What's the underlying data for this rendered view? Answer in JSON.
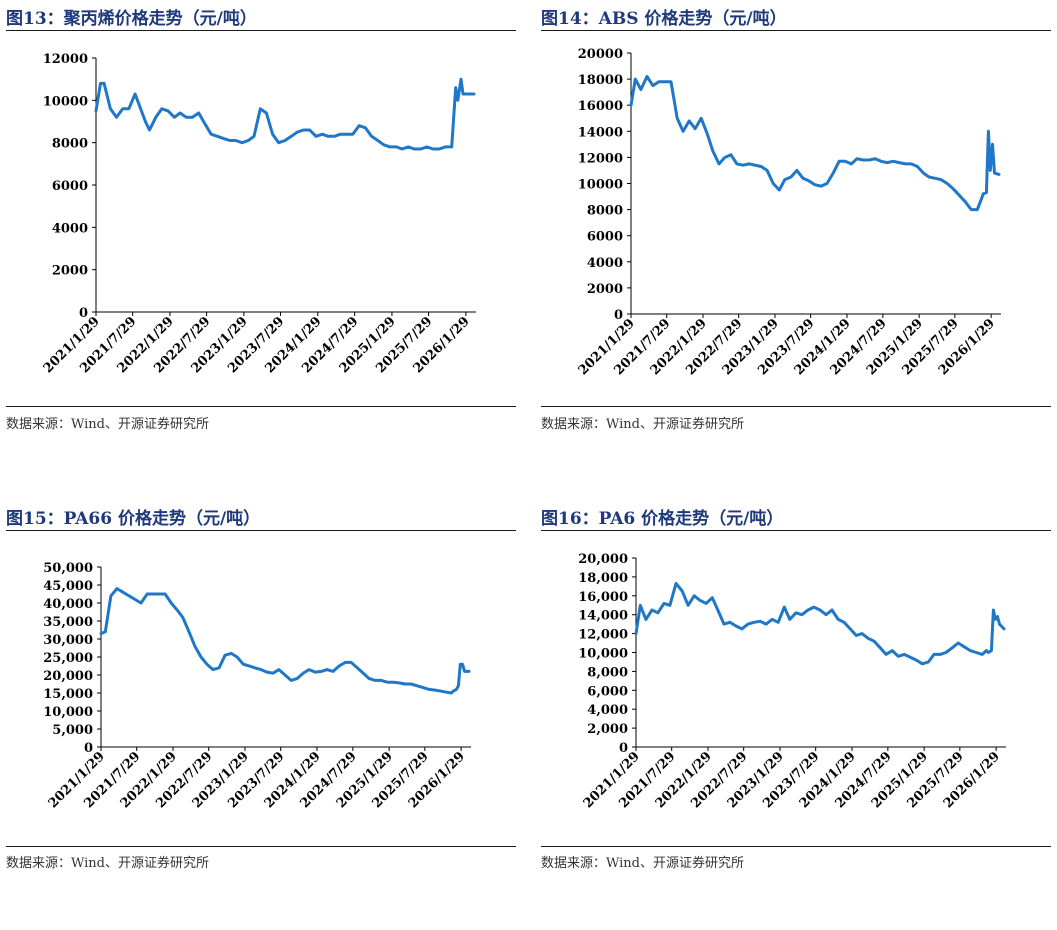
{
  "panels": [
    {
      "title": "图13：聚丙烯价格走势（元/吨）",
      "source": "数据来源：Wind、开源证券研究所"
    },
    {
      "title": "图14：ABS 价格走势（元/吨）",
      "source": "数据来源：Wind、开源证券研究所"
    },
    {
      "title": "图15：PA66 价格走势（元/吨）",
      "source": "数据来源：Wind、开源证券研究所"
    },
    {
      "title": "图16：PA6 价格走势（元/吨）",
      "source": "数据来源：Wind、开源证券研究所"
    }
  ],
  "chart_data": [
    {
      "type": "line",
      "title": "图13：聚丙烯价格走势（元/吨）",
      "color": "#1f77c8",
      "ylim": [
        0,
        12000
      ],
      "yticks": [
        0,
        2000,
        4000,
        6000,
        8000,
        10000,
        12000
      ],
      "ytick_labels": [
        "0",
        "2000",
        "4000",
        "6000",
        "8000",
        "10000",
        "12000"
      ],
      "xtick_labels": [
        "2021/1/29",
        "2021/7/29",
        "2022/1/29",
        "2022/7/29",
        "2023/1/29",
        "2023/7/29",
        "2024/1/29",
        "2024/7/29",
        "2025/1/29",
        "2025/7/29",
        "2026/1/29"
      ],
      "xlim": [
        "2021/1/29",
        "2026/3/20"
      ],
      "series": [
        {
          "x": [
            "2021/1/29",
            "2021/2/20",
            "2021/3/10",
            "2021/4/10",
            "2021/5/10",
            "2021/6/10",
            "2021/7/10",
            "2021/8/10",
            "2021/9/10",
            "2021/9/30",
            "2021/10/20",
            "2021/11/20",
            "2021/12/20",
            "2022/1/20",
            "2022/2/20",
            "2022/3/20",
            "2022/4/20",
            "2022/5/20",
            "2022/6/20",
            "2022/7/20",
            "2022/8/20",
            "2022/9/20",
            "2022/10/20",
            "2022/11/20",
            "2022/12/20",
            "2023/1/20",
            "2023/2/20",
            "2023/3/20",
            "2023/4/20",
            "2023/5/20",
            "2023/6/20",
            "2023/7/20",
            "2023/8/20",
            "2023/9/20",
            "2023/10/20",
            "2023/11/20",
            "2023/12/20",
            "2024/1/20",
            "2024/2/20",
            "2024/3/20",
            "2024/4/20",
            "2024/5/20",
            "2024/6/20",
            "2024/7/20",
            "2024/8/20",
            "2024/9/20",
            "2024/10/20",
            "2024/11/20",
            "2024/12/20",
            "2025/1/20",
            "2025/2/20",
            "2025/3/20",
            "2025/4/20",
            "2025/5/20",
            "2025/6/20",
            "2025/7/20",
            "2025/8/20",
            "2025/9/20",
            "2025/10/20",
            "2025/11/20",
            "2025/12/10",
            "2025/12/20",
            "2026/1/5",
            "2026/1/15",
            "2026/1/25",
            "2026/2/5",
            "2026/2/15",
            "2026/2/25",
            "2026/3/10"
          ],
          "y": [
            9500,
            10800,
            10800,
            9600,
            9200,
            9600,
            9600,
            10300,
            9500,
            9000,
            8600,
            9200,
            9600,
            9500,
            9200,
            9400,
            9200,
            9200,
            9400,
            8900,
            8400,
            8300,
            8200,
            8100,
            8100,
            8000,
            8100,
            8300,
            9600,
            9400,
            8400,
            8000,
            8100,
            8300,
            8500,
            8600,
            8600,
            8300,
            8400,
            8300,
            8300,
            8400,
            8400,
            8400,
            8800,
            8700,
            8300,
            8100,
            7900,
            7800,
            7800,
            7700,
            7800,
            7700,
            7700,
            7800,
            7700,
            7700,
            7800,
            7800,
            10600,
            10000,
            11000,
            10300,
            10300,
            10300,
            10300,
            10300,
            10300
          ]
        }
      ]
    },
    {
      "type": "line",
      "title": "图14：ABS 价格走势（元/吨）",
      "color": "#1f77c8",
      "ylim": [
        0,
        20000
      ],
      "yticks": [
        0,
        2000,
        4000,
        6000,
        8000,
        10000,
        12000,
        14000,
        16000,
        18000,
        20000
      ],
      "ytick_labels": [
        "0",
        "2000",
        "4000",
        "6000",
        "8000",
        "10000",
        "12000",
        "14000",
        "16000",
        "18000",
        "20000"
      ],
      "xtick_labels": [
        "2021/1/29",
        "2021/7/29",
        "2022/1/29",
        "2022/7/29",
        "2023/1/29",
        "2023/7/29",
        "2024/1/29",
        "2024/7/29",
        "2025/1/29",
        "2025/7/29",
        "2026/1/29"
      ],
      "xlim": [
        "2021/1/29",
        "2026/3/20"
      ],
      "series": [
        {
          "x": [
            "2021/1/29",
            "2021/2/20",
            "2021/3/20",
            "2021/4/20",
            "2021/5/20",
            "2021/6/20",
            "2021/7/20",
            "2021/8/20",
            "2021/9/20",
            "2021/10/20",
            "2021/11/20",
            "2021/12/20",
            "2022/1/20",
            "2022/2/20",
            "2022/3/20",
            "2022/4/20",
            "2022/5/20",
            "2022/6/20",
            "2022/7/20",
            "2022/8/20",
            "2022/9/20",
            "2022/10/20",
            "2022/11/20",
            "2022/12/20",
            "2023/1/20",
            "2023/2/20",
            "2023/3/20",
            "2023/4/20",
            "2023/5/20",
            "2023/6/20",
            "2023/7/20",
            "2023/8/20",
            "2023/9/20",
            "2023/10/20",
            "2023/11/20",
            "2023/12/20",
            "2024/1/20",
            "2024/2/20",
            "2024/3/20",
            "2024/4/20",
            "2024/5/20",
            "2024/6/20",
            "2024/7/20",
            "2024/8/20",
            "2024/9/20",
            "2024/10/20",
            "2024/11/20",
            "2024/12/20",
            "2025/1/20",
            "2025/2/20",
            "2025/3/20",
            "2025/4/20",
            "2025/5/20",
            "2025/6/20",
            "2025/7/20",
            "2025/8/20",
            "2025/9/20",
            "2025/10/20",
            "2025/11/20",
            "2025/12/10",
            "2025/12/20",
            "2026/1/5",
            "2026/1/15",
            "2026/1/25",
            "2026/2/5",
            "2026/2/15",
            "2026/3/10"
          ],
          "y": [
            16000,
            18000,
            17200,
            18200,
            17500,
            17800,
            17800,
            17800,
            15000,
            14000,
            14800,
            14200,
            15000,
            13800,
            12500,
            11500,
            12000,
            12200,
            11500,
            11400,
            11500,
            11400,
            11300,
            11000,
            10000,
            9500,
            10300,
            10500,
            11000,
            10400,
            10200,
            9900,
            9800,
            10000,
            10800,
            11700,
            11700,
            11500,
            11900,
            11800,
            11800,
            11900,
            11700,
            11600,
            11700,
            11600,
            11500,
            11500,
            11300,
            10800,
            10500,
            10400,
            10300,
            10000,
            9600,
            9100,
            8600,
            8000,
            8000,
            8800,
            9200,
            9300,
            14000,
            11000,
            13000,
            10800,
            10700
          ]
        }
      ]
    },
    {
      "type": "line",
      "title": "图15：PA66 价格走势（元/吨）",
      "color": "#1f77c8",
      "ylim": [
        0,
        50000
      ],
      "yticks": [
        0,
        5000,
        10000,
        15000,
        20000,
        25000,
        30000,
        35000,
        40000,
        45000,
        50000
      ],
      "ytick_labels": [
        "0",
        "5,000",
        "10,000",
        "15,000",
        "20,000",
        "25,000",
        "30,000",
        "35,000",
        "40,000",
        "45,000",
        "50,000"
      ],
      "xtick_labels": [
        "2021/1/29",
        "2021/7/29",
        "2022/1/29",
        "2022/7/29",
        "2023/1/29",
        "2023/7/29",
        "2024/1/29",
        "2024/7/29",
        "2025/1/29",
        "2025/7/29",
        "2026/1/29"
      ],
      "xlim": [
        "2021/1/29",
        "2026/3/20"
      ],
      "series": [
        {
          "x": [
            "2021/1/29",
            "2021/2/20",
            "2021/3/20",
            "2021/4/20",
            "2021/5/20",
            "2021/6/20",
            "2021/7/20",
            "2021/8/20",
            "2021/9/20",
            "2021/10/20",
            "2021/11/20",
            "2021/12/20",
            "2022/1/20",
            "2022/2/20",
            "2022/3/20",
            "2022/4/20",
            "2022/5/20",
            "2022/6/20",
            "2022/7/20",
            "2022/8/20",
            "2022/9/20",
            "2022/10/20",
            "2022/11/20",
            "2022/12/20",
            "2023/1/20",
            "2023/2/20",
            "2023/3/20",
            "2023/4/20",
            "2023/5/20",
            "2023/6/20",
            "2023/7/20",
            "2023/8/20",
            "2023/9/20",
            "2023/10/20",
            "2023/11/20",
            "2023/12/20",
            "2024/1/20",
            "2024/2/20",
            "2024/3/20",
            "2024/4/20",
            "2024/5/20",
            "2024/6/20",
            "2024/7/20",
            "2024/8/20",
            "2024/9/20",
            "2024/10/20",
            "2024/11/20",
            "2024/12/20",
            "2025/1/20",
            "2025/2/20",
            "2025/3/20",
            "2025/4/20",
            "2025/5/20",
            "2025/6/20",
            "2025/7/20",
            "2025/8/20",
            "2025/9/20",
            "2025/10/20",
            "2025/11/20",
            "2025/12/10",
            "2025/12/20",
            "2026/1/5",
            "2026/1/15",
            "2026/1/25",
            "2026/2/5",
            "2026/2/15",
            "2026/3/10"
          ],
          "y": [
            31500,
            32000,
            42000,
            44000,
            43000,
            42000,
            41000,
            40000,
            42500,
            42500,
            42500,
            42500,
            40000,
            38000,
            36000,
            32000,
            28000,
            25000,
            23000,
            21500,
            22000,
            25500,
            26000,
            25000,
            23000,
            22500,
            22000,
            21500,
            20800,
            20500,
            21500,
            20000,
            18500,
            19000,
            20500,
            21500,
            20800,
            21000,
            21500,
            21000,
            22500,
            23500,
            23500,
            22000,
            20500,
            19000,
            18500,
            18500,
            18000,
            18000,
            17800,
            17500,
            17500,
            17000,
            16500,
            16000,
            15800,
            15500,
            15200,
            15000,
            15500,
            16000,
            17000,
            23000,
            23000,
            21000,
            21000
          ]
        }
      ]
    },
    {
      "type": "line",
      "title": "图16：PA6 价格走势（元/吨）",
      "color": "#1f77c8",
      "ylim": [
        0,
        20000
      ],
      "yticks": [
        0,
        2000,
        4000,
        6000,
        8000,
        10000,
        12000,
        14000,
        16000,
        18000,
        20000
      ],
      "ytick_labels": [
        "0",
        "2,000",
        "4,000",
        "6,000",
        "8,000",
        "10,000",
        "12,000",
        "14,000",
        "16,000",
        "18,000",
        "20,000"
      ],
      "xtick_labels": [
        "2021/1/29",
        "2021/7/29",
        "2022/1/29",
        "2022/7/29",
        "2023/1/29",
        "2023/7/29",
        "2024/1/29",
        "2024/7/29",
        "2025/1/29",
        "2025/7/29",
        "2026/1/29"
      ],
      "xlim": [
        "2021/1/29",
        "2026/3/20"
      ],
      "series": [
        {
          "x": [
            "2021/1/29",
            "2021/2/20",
            "2021/3/20",
            "2021/4/20",
            "2021/5/20",
            "2021/6/20",
            "2021/7/20",
            "2021/8/20",
            "2021/9/20",
            "2021/10/20",
            "2021/11/20",
            "2021/12/20",
            "2022/1/20",
            "2022/2/20",
            "2022/3/20",
            "2022/4/20",
            "2022/5/20",
            "2022/6/20",
            "2022/7/20",
            "2022/8/20",
            "2022/9/20",
            "2022/10/20",
            "2022/11/20",
            "2022/12/20",
            "2023/1/20",
            "2023/2/20",
            "2023/3/20",
            "2023/4/20",
            "2023/5/20",
            "2023/6/20",
            "2023/7/20",
            "2023/8/20",
            "2023/9/20",
            "2023/10/20",
            "2023/11/20",
            "2023/12/20",
            "2024/1/20",
            "2024/2/20",
            "2024/3/20",
            "2024/4/20",
            "2024/5/20",
            "2024/6/20",
            "2024/7/20",
            "2024/8/20",
            "2024/9/20",
            "2024/10/20",
            "2024/11/20",
            "2024/12/20",
            "2025/1/20",
            "2025/2/20",
            "2025/3/20",
            "2025/4/20",
            "2025/5/20",
            "2025/6/20",
            "2025/7/20",
            "2025/8/20",
            "2025/9/20",
            "2025/10/20",
            "2025/11/20",
            "2025/12/10",
            "2025/12/20",
            "2026/1/5",
            "2026/1/15",
            "2026/1/25",
            "2026/2/5",
            "2026/2/15",
            "2026/3/10"
          ],
          "y": [
            12000,
            15000,
            13500,
            14500,
            14200,
            15200,
            15000,
            17300,
            16500,
            15000,
            16000,
            15500,
            15200,
            15800,
            14500,
            13000,
            13200,
            12800,
            12500,
            13000,
            13200,
            13300,
            13000,
            13500,
            13200,
            14800,
            13500,
            14200,
            14000,
            14500,
            14800,
            14500,
            14000,
            14500,
            13500,
            13200,
            12500,
            11800,
            12000,
            11500,
            11200,
            10500,
            9800,
            10200,
            9600,
            9800,
            9500,
            9200,
            8800,
            9000,
            9800,
            9800,
            10000,
            10500,
            11000,
            10600,
            10200,
            10000,
            9800,
            10200,
            10000,
            10200,
            14500,
            13500,
            13800,
            13000,
            12500
          ]
        }
      ]
    }
  ]
}
